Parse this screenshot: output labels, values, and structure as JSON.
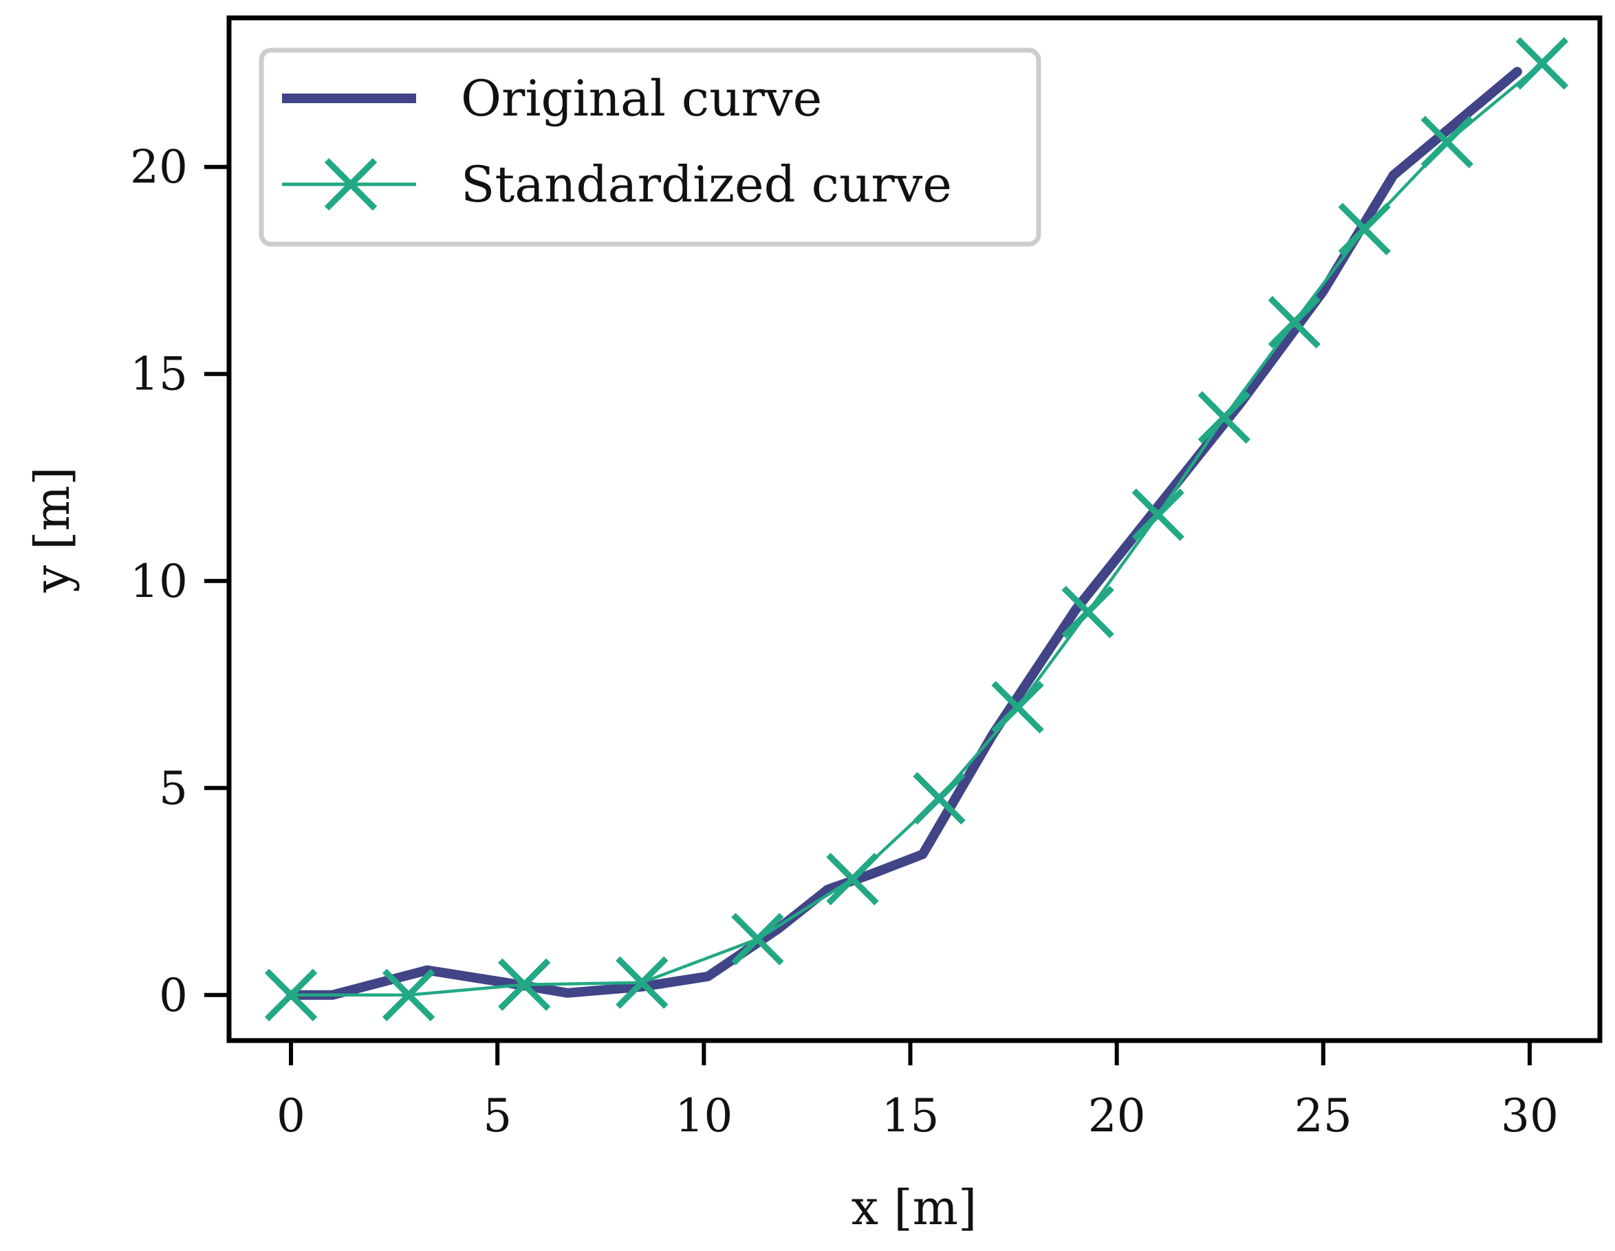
{
  "chart_data": {
    "type": "line",
    "title": "",
    "xlabel": "x [m]",
    "ylabel": "y [m]",
    "xlim": [
      -1.5,
      31.7
    ],
    "ylim": [
      -1.1,
      23.6
    ],
    "xticks": [
      0,
      5,
      10,
      15,
      20,
      25,
      30
    ],
    "yticks": [
      0,
      5,
      10,
      15,
      20
    ],
    "grid": false,
    "legend_position": "top-left",
    "series": [
      {
        "name": "Original curve",
        "color": "#414487",
        "marker": "none",
        "x": [
          0,
          1,
          3.3,
          5.2,
          6.7,
          8.5,
          10.1,
          11.8,
          13.0,
          14.0,
          15.3,
          17.0,
          19.0,
          21.0,
          23.0,
          25.0,
          26.7,
          27.9,
          29.7
        ],
        "y": [
          0,
          0,
          0.6,
          0.3,
          0.05,
          0.2,
          0.45,
          1.6,
          2.55,
          2.9,
          3.4,
          6.3,
          9.3,
          11.8,
          14.3,
          17.0,
          19.8,
          20.8,
          22.3
        ]
      },
      {
        "name": "Standardized curve",
        "color": "#22a884",
        "marker": "x",
        "x": [
          0,
          2.85,
          5.65,
          8.5,
          11.3,
          13.6,
          15.7,
          17.6,
          19.3,
          21.0,
          22.6,
          24.3,
          26.0,
          28.0,
          30.3
        ],
        "y": [
          0,
          0,
          0.25,
          0.3,
          1.35,
          2.8,
          4.75,
          6.95,
          9.25,
          11.6,
          13.95,
          16.25,
          18.5,
          20.6,
          22.5
        ]
      }
    ]
  }
}
